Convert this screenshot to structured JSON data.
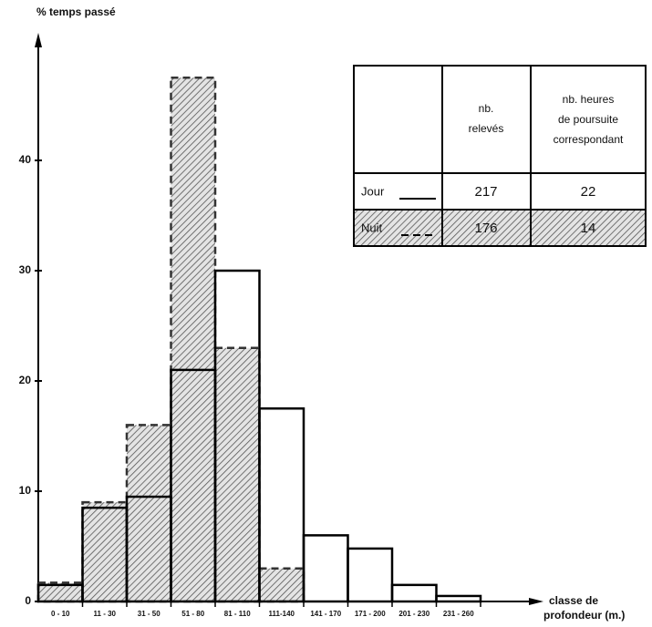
{
  "chart_data": {
    "type": "bar",
    "y_label": "% temps passé",
    "x_label_1": "classe de",
    "x_label_2": "profondeur (m.)",
    "categories": [
      "0 - 10",
      "11 - 30",
      "31 - 50",
      "51 - 80",
      "81 - 110",
      "111-140",
      "141 - 170",
      "171 - 200",
      "201 - 230",
      "231 - 260"
    ],
    "series": [
      {
        "name": "Nuit",
        "color": "#333333",
        "values": [
          1.7,
          9,
          16,
          47.5,
          23,
          3,
          0,
          0,
          0,
          0
        ]
      },
      {
        "name": "Jour",
        "color": "#000000",
        "values": [
          1.5,
          8.5,
          9.5,
          21,
          30,
          17.5,
          6,
          4.8,
          1.5,
          0.5
        ]
      }
    ],
    "ylim": [
      0,
      50
    ],
    "yticks": [
      0,
      10,
      20,
      30,
      40
    ]
  },
  "table": {
    "headers": [
      "nb. relevés",
      "nb. heures de poursuite correspondant"
    ],
    "rows": [
      [
        "Jour",
        "217",
        "22"
      ],
      [
        "Nuit",
        "176",
        "14"
      ]
    ]
  }
}
